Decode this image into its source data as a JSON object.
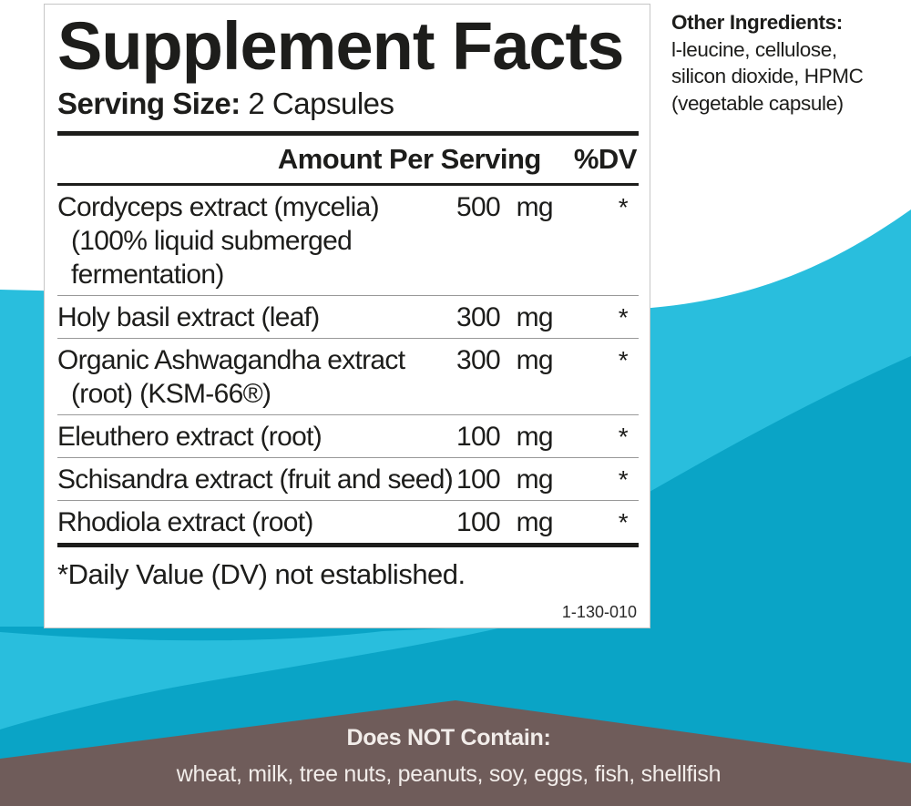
{
  "colors": {
    "light_teal": "#29bedd",
    "dark_teal": "#0aa4c6",
    "brown": "#6f5c5a",
    "panel_bg": "#ffffff",
    "text_black": "#1d1d1b",
    "banner_text": "#f2edea"
  },
  "panel": {
    "title": "Supplement Facts",
    "serving_label": "Serving Size:",
    "serving_value": " 2 Capsules",
    "columns": {
      "amount": "Amount Per Serving",
      "dv": "%DV"
    },
    "rows": [
      {
        "name_lines": [
          "Cordyceps extract (mycelia)",
          "(100% liquid submerged",
          "fermentation)"
        ],
        "amount": "500 mg",
        "dv": "*"
      },
      {
        "name_lines": [
          "Holy basil extract (leaf)"
        ],
        "amount": "300 mg",
        "dv": "*"
      },
      {
        "name_lines": [
          "Organic Ashwagandha extract",
          "(root) (KSM-66®)"
        ],
        "amount": "300 mg",
        "dv": "*"
      },
      {
        "name_lines": [
          "Eleuthero extract (root)"
        ],
        "amount": "100 mg",
        "dv": "*"
      },
      {
        "name_lines": [
          "Schisandra extract (fruit and seed)"
        ],
        "amount": "100 mg",
        "dv": "*"
      },
      {
        "name_lines": [
          "Rhodiola extract (root)"
        ],
        "amount": "100 mg",
        "dv": "*"
      }
    ],
    "footnote": "*Daily Value (DV) not established.",
    "code": "1-130-010"
  },
  "other_ingredients": {
    "label": "Other Ingredients:",
    "lines": [
      "l-leucine, cellulose,",
      "silicon dioxide, HPMC",
      "(vegetable capsule)"
    ]
  },
  "bottom_banner": {
    "heading": "Does NOT Contain:",
    "items": "wheat, milk, tree nuts, peanuts, soy, eggs, fish, shellfish"
  }
}
